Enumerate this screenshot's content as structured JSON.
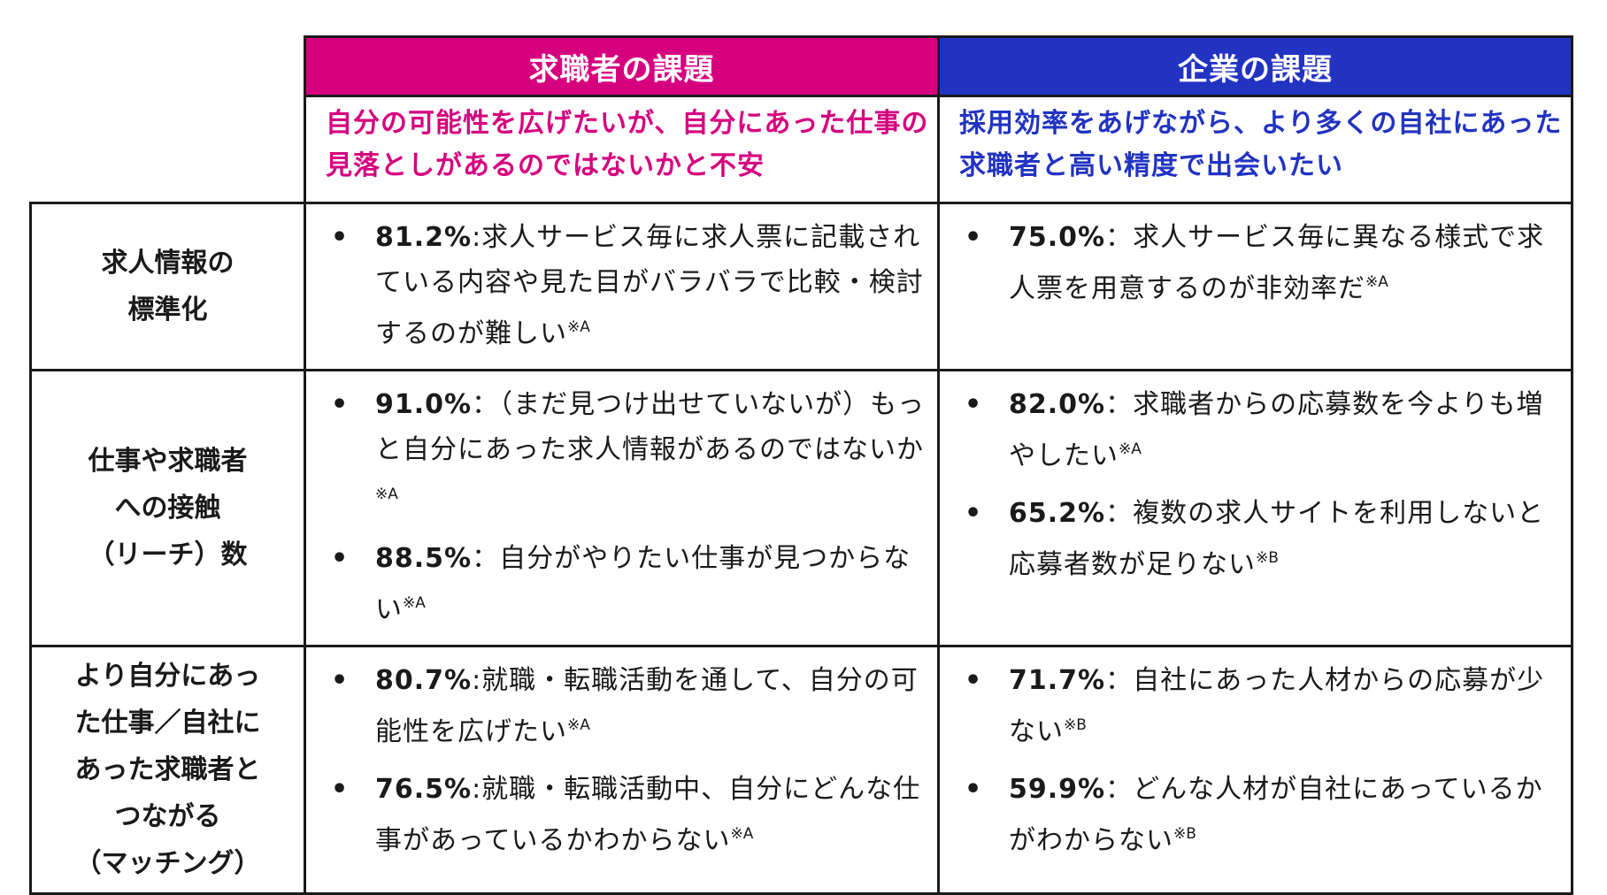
{
  "header": {
    "seeker_title": "求職者の課題",
    "company_title": "企業の課題",
    "seeker_subtitle": "自分の可能性を広げたいが、自分にあった仕事の見落としがあるのではないかと不安",
    "company_subtitle": "採用効率をあげながら、より多くの自社にあった求職者と高い精度で出会いたい"
  },
  "colors": {
    "seeker_accent": "#d6007f",
    "company_accent": "#2233c2",
    "border": "#1a1a1a"
  },
  "rows": [
    {
      "label_lines": [
        "求人情報の",
        "標準化"
      ],
      "seeker": [
        {
          "pct": "81.2%",
          "text": ":求人サービス毎に求人票に記載されている内容や見た目がバラバラで比較・検討するのが難しい",
          "note": "※A"
        }
      ],
      "company": [
        {
          "pct": "75.0%",
          "text": "：求人サービス毎に異なる様式で求人票を用意するのが非効率だ",
          "note": "※A"
        }
      ]
    },
    {
      "label_lines": [
        "仕事や求職者",
        "への接触",
        "（リーチ）数"
      ],
      "seeker": [
        {
          "pct": "91.0%",
          "text": "：（まだ見つけ出せていないが）もっと自分にあった求人情報があるのではないか",
          "note": "※A"
        },
        {
          "pct": "88.5%",
          "text": "：自分がやりたい仕事が見つからない",
          "note": "※A"
        }
      ],
      "company": [
        {
          "pct": "82.0%",
          "text": "：求職者からの応募数を今よりも増やしたい",
          "note": "※A"
        },
        {
          "pct": "65.2%",
          "text": "：複数の求人サイトを利用しないと応募者数が足りない",
          "note": "※B"
        }
      ]
    },
    {
      "label_lines": [
        "より自分にあっ",
        "た仕事／自社に",
        "あった求職者と",
        "つながる",
        "（マッチング）"
      ],
      "seeker": [
        {
          "pct": "80.7%",
          "text": ":就職・転職活動を通して、自分の可能性を広げたい",
          "note": "※A"
        },
        {
          "pct": "76.5%",
          "text": ":就職・転職活動中、自分にどんな仕事があっているかわからない",
          "note": "※A"
        }
      ],
      "company": [
        {
          "pct": "71.7%",
          "text": "：自社にあった人材からの応募が少ない",
          "note": "※B"
        },
        {
          "pct": "59.9%",
          "text": "：どんな人材が自社にあっているかがわからない",
          "note": "※B"
        }
      ]
    }
  ]
}
